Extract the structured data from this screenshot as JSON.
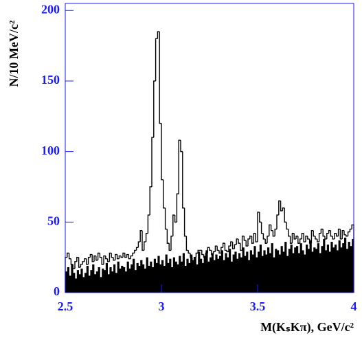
{
  "chart_data": {
    "type": "histogram",
    "xlabel": "M(KₛKπ), GeV/c²",
    "ylabel": "N/10 MeV/c²",
    "bins": [
      2.5,
      2.51,
      2.52,
      2.53,
      2.54,
      2.55,
      2.56,
      2.57,
      2.58,
      2.59,
      2.6,
      2.61,
      2.62,
      2.63,
      2.64,
      2.65,
      2.66,
      2.67,
      2.68,
      2.69,
      2.7,
      2.71,
      2.72,
      2.73,
      2.74,
      2.75,
      2.76,
      2.77,
      2.78,
      2.79,
      2.8,
      2.81,
      2.82,
      2.83,
      2.84,
      2.85,
      2.86,
      2.87,
      2.88,
      2.89,
      2.9,
      2.91,
      2.92,
      2.93,
      2.94,
      2.95,
      2.96,
      2.97,
      2.98,
      2.99,
      3,
      3.01,
      3.02,
      3.03,
      3.04,
      3.05,
      3.06,
      3.07,
      3.08,
      3.09,
      3.1,
      3.11,
      3.12,
      3.13,
      3.14,
      3.15,
      3.16,
      3.17,
      3.18,
      3.19,
      3.2,
      3.21,
      3.22,
      3.23,
      3.24,
      3.25,
      3.26,
      3.27,
      3.28,
      3.29,
      3.3,
      3.31,
      3.32,
      3.33,
      3.34,
      3.35,
      3.36,
      3.37,
      3.38,
      3.39,
      3.4,
      3.41,
      3.42,
      3.43,
      3.44,
      3.45,
      3.46,
      3.47,
      3.48,
      3.49,
      3.5,
      3.51,
      3.52,
      3.53,
      3.54,
      3.55,
      3.56,
      3.57,
      3.58,
      3.59,
      3.6,
      3.61,
      3.62,
      3.63,
      3.64,
      3.65,
      3.66,
      3.67,
      3.68,
      3.69,
      3.7,
      3.71,
      3.72,
      3.73,
      3.74,
      3.75,
      3.76,
      3.77,
      3.78,
      3.79,
      3.8,
      3.81,
      3.82,
      3.83,
      3.84,
      3.85,
      3.86,
      3.87,
      3.88,
      3.89,
      3.9,
      3.91,
      3.92,
      3.93,
      3.94,
      3.95,
      3.96,
      3.97,
      3.98,
      3.99,
      4
    ],
    "series": [
      {
        "color": "#000000",
        "fill": false,
        "values": [
          25,
          28,
          24,
          20,
          17,
          22,
          25,
          18,
          20,
          22,
          24,
          20,
          25,
          27,
          22,
          26,
          23,
          28,
          25,
          20,
          26,
          24,
          22,
          28,
          25,
          23,
          27,
          24,
          26,
          25,
          28,
          25,
          27,
          24,
          26,
          28,
          30,
          32,
          36,
          44,
          30,
          36,
          42,
          55,
          75,
          110,
          150,
          180,
          185,
          120,
          80,
          60,
          45,
          35,
          30,
          40,
          55,
          50,
          70,
          108,
          100,
          60,
          40,
          30,
          28,
          25,
          22,
          25,
          28,
          30,
          30,
          27,
          25,
          28,
          32,
          30,
          27,
          29,
          33,
          30,
          28,
          32,
          35,
          30,
          29,
          33,
          36,
          31,
          34,
          38,
          35,
          30,
          40,
          37,
          33,
          38,
          40,
          35,
          42,
          36,
          57,
          50,
          42,
          38,
          35,
          40,
          48,
          44,
          40,
          45,
          55,
          65,
          58,
          60,
          50,
          45,
          40,
          35,
          42,
          38,
          40,
          35,
          38,
          42,
          36,
          40,
          38,
          35,
          44,
          40,
          38,
          36,
          42,
          45,
          40,
          38,
          42,
          44,
          40,
          38,
          42,
          40,
          45,
          38,
          44,
          41,
          40,
          43,
          45,
          48
        ]
      },
      {
        "color": "#000000",
        "fill": true,
        "values": [
          15,
          18,
          12,
          20,
          14,
          10,
          16,
          13,
          17,
          11,
          14,
          19,
          12,
          16,
          20,
          13,
          15,
          18,
          11,
          17,
          16,
          21,
          13,
          18,
          15,
          20,
          14,
          22,
          17,
          19,
          18,
          15,
          22,
          17,
          20,
          24,
          16,
          21,
          19,
          23,
          20,
          17,
          25,
          19,
          22,
          18,
          24,
          21,
          26,
          20,
          23,
          19,
          27,
          21,
          24,
          18,
          25,
          22,
          20,
          26,
          22,
          28,
          19,
          24,
          21,
          27,
          23,
          25,
          20,
          29,
          24,
          21,
          26,
          30,
          22,
          25,
          28,
          23,
          27,
          24,
          26,
          30,
          23,
          28,
          25,
          31,
          22,
          27,
          29,
          24,
          28,
          25,
          32,
          26,
          29,
          23,
          30,
          27,
          33,
          25,
          29,
          34,
          26,
          30,
          27,
          32,
          28,
          35,
          25,
          31,
          30,
          27,
          33,
          29,
          36,
          26,
          31,
          34,
          28,
          32,
          33,
          28,
          35,
          30,
          27,
          34,
          31,
          37,
          29,
          32,
          31,
          35,
          28,
          33,
          38,
          30,
          34,
          29,
          36,
          32,
          34,
          30,
          37,
          32,
          35,
          39,
          31,
          36,
          33,
          38
        ]
      }
    ],
    "xlim": [
      2.5,
      4
    ],
    "ylim": [
      0,
      205
    ],
    "xticks": [
      2.5,
      3,
      3.5,
      4
    ],
    "yticks": [
      0,
      50,
      100,
      150,
      200
    ],
    "axis_color": "#1a1aff"
  }
}
